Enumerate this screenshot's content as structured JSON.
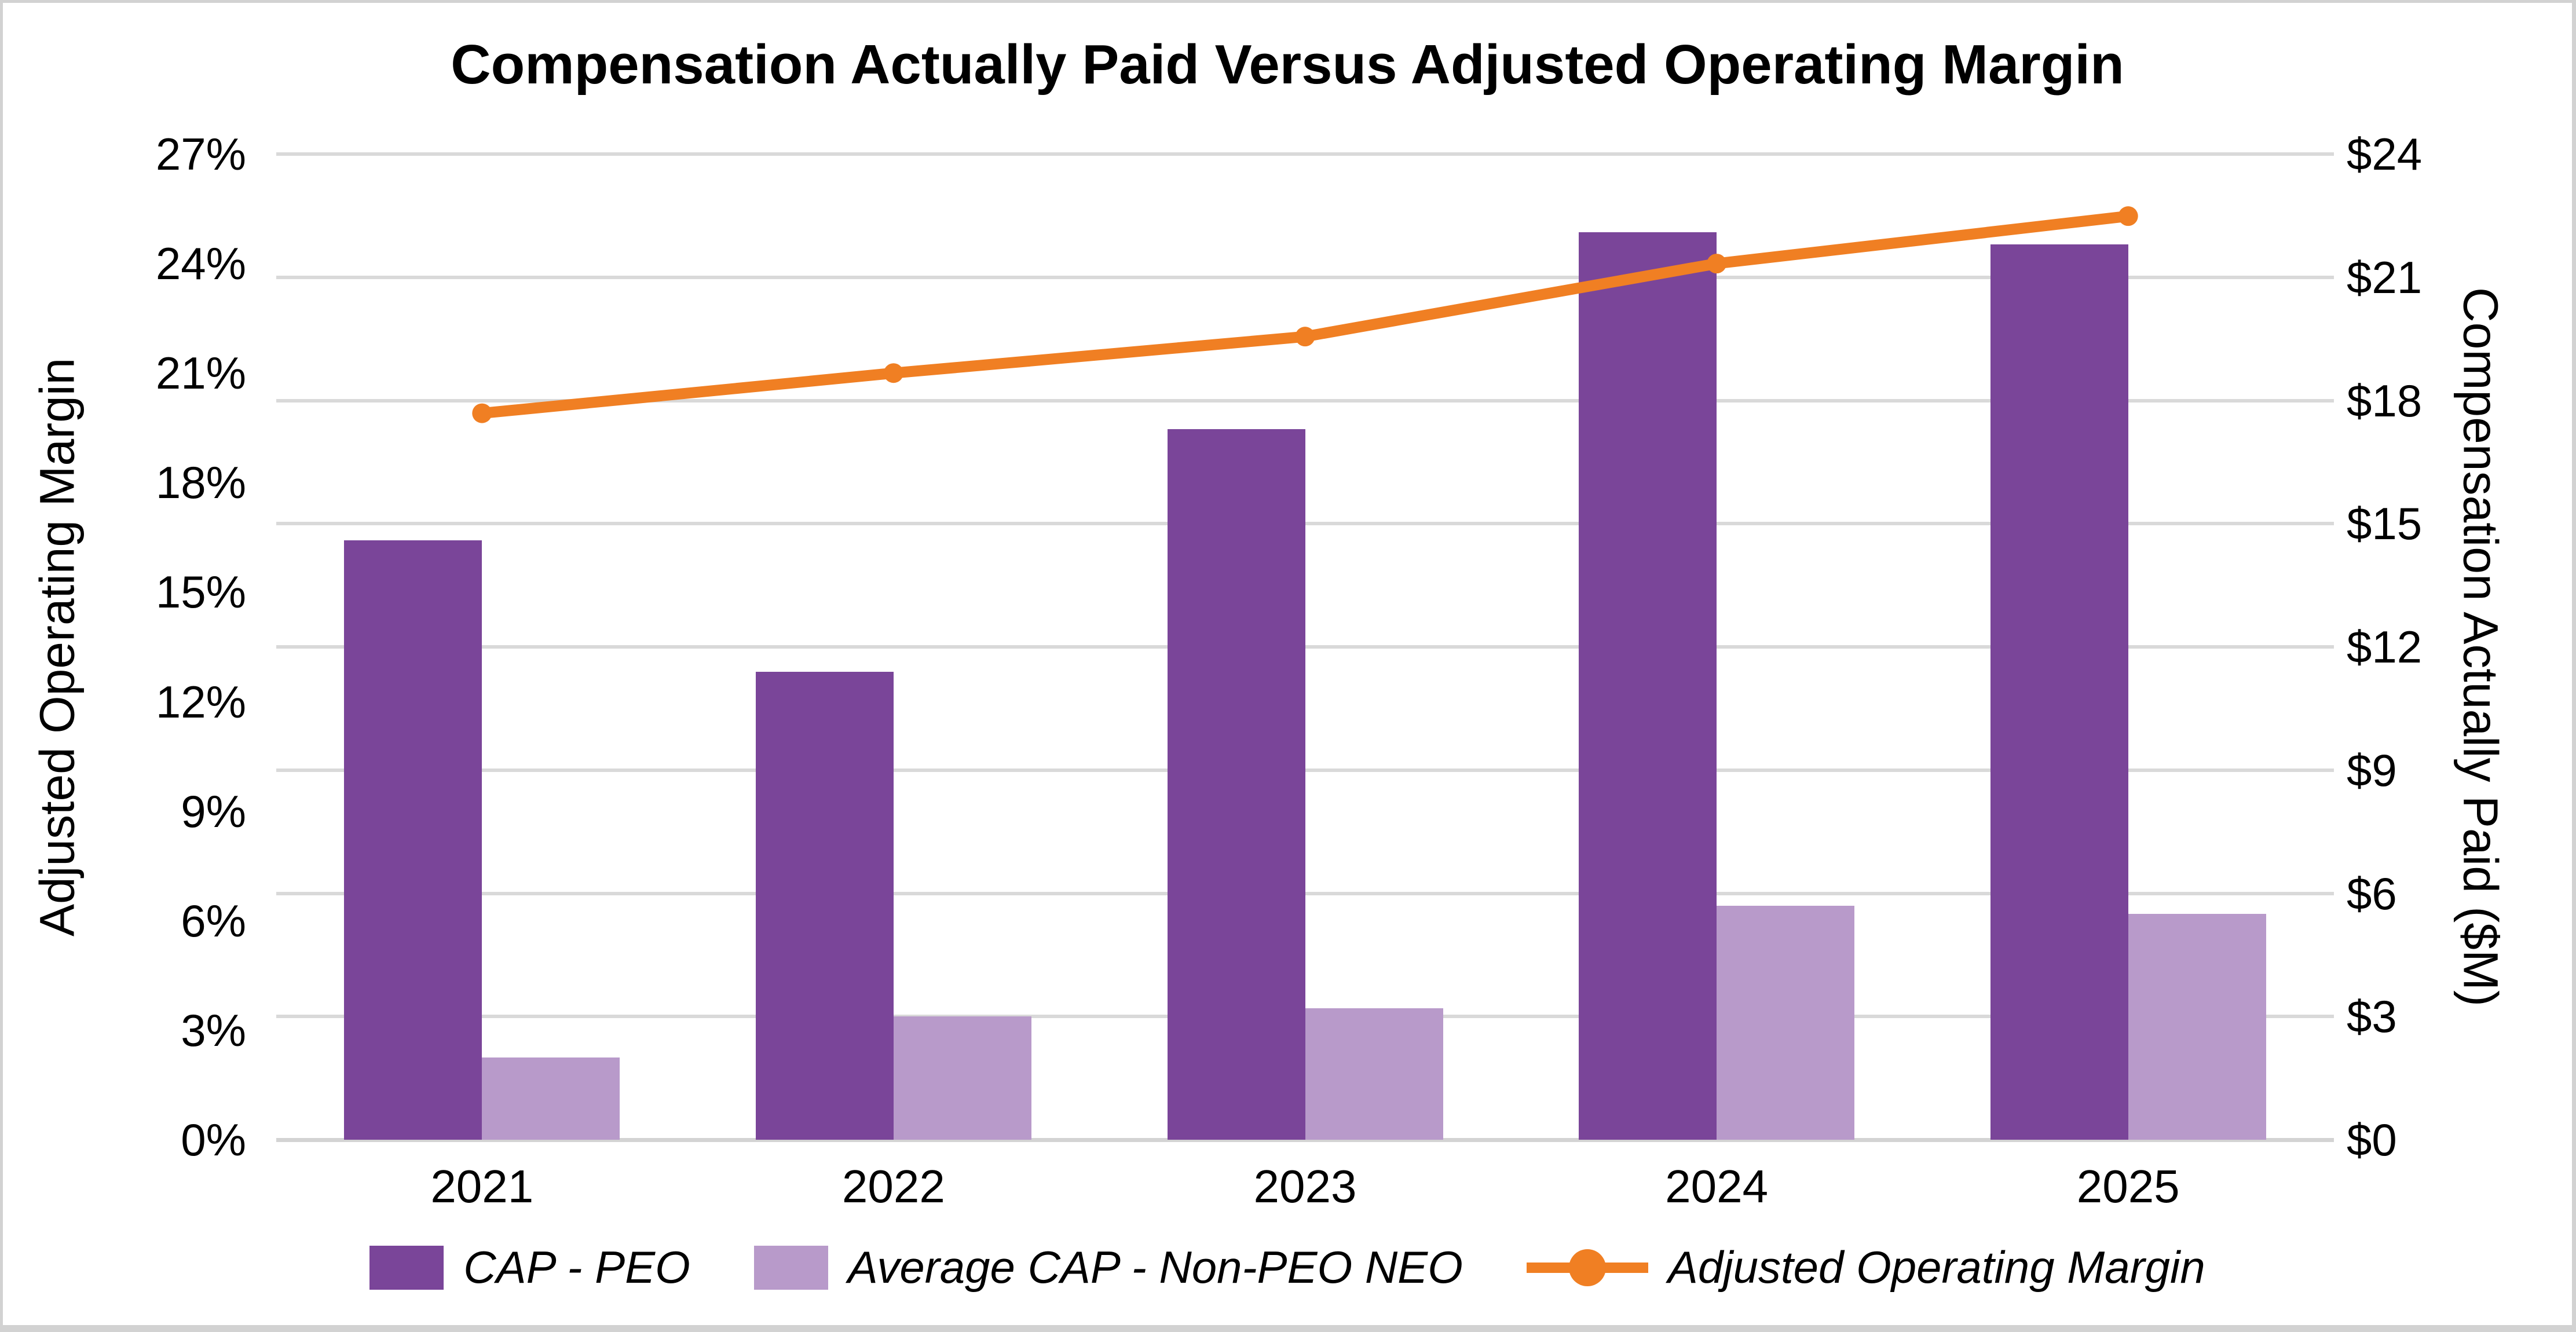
{
  "title": "Compensation Actually Paid Versus Adjusted Operating Margin",
  "left_axis": {
    "title": "Adjusted Operating Margin",
    "tick_labels": [
      "0%",
      "3%",
      "6%",
      "9%",
      "12%",
      "15%",
      "18%",
      "21%",
      "24%",
      "27%"
    ],
    "min": 0,
    "max": 27,
    "step": 3
  },
  "right_axis": {
    "title": "Compensation Actually Paid ($M)",
    "tick_labels": [
      "$0",
      "$3",
      "$6",
      "$9",
      "$12",
      "$15",
      "$18",
      "$21",
      "$24"
    ],
    "min": 0,
    "max": 24,
    "step": 3
  },
  "colors": {
    "cap_peo": "#7a4599",
    "avg_cap_non_peo": "#b89aca",
    "margin_line": "#f07f23",
    "gridline": "#d9d9d9",
    "text": "#000000",
    "canvas_border": "#d2d2d2",
    "background": "#ffffff"
  },
  "chart_data": {
    "type": "bar",
    "subtype": "dual-axis bar + line combo",
    "title": "Compensation Actually Paid Versus Adjusted Operating Margin",
    "categories": [
      "2021",
      "2022",
      "2023",
      "2024",
      "2025"
    ],
    "series": [
      {
        "name": "CAP - PEO",
        "type": "bar",
        "axis": "right",
        "unit": "$M",
        "color": "#7a4599",
        "values": [
          14.6,
          11.4,
          17.3,
          22.1,
          21.8
        ]
      },
      {
        "name": "Average CAP - Non-PEO NEO",
        "type": "bar",
        "axis": "right",
        "unit": "$M",
        "color": "#b89aca",
        "values": [
          2.0,
          3.0,
          3.2,
          5.7,
          5.5
        ]
      },
      {
        "name": "Adjusted Operating Margin",
        "type": "line",
        "axis": "left",
        "unit": "%",
        "color": "#f07f23",
        "values": [
          19.9,
          21.0,
          22.0,
          24.0,
          25.3
        ]
      }
    ],
    "left_ylabel": "Adjusted Operating Margin",
    "right_ylabel": "Compensation Actually Paid ($M)",
    "left_ylim": [
      0,
      27
    ],
    "right_ylim": [
      0,
      24
    ],
    "gridlines": "horizontal, aligned to right axis $3 steps",
    "legend_position": "bottom"
  }
}
